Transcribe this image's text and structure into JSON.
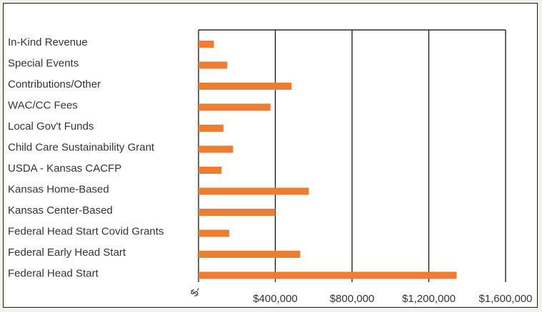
{
  "chart_data": {
    "type": "bar",
    "orientation": "horizontal",
    "title": "",
    "xlabel": "",
    "ylabel": "",
    "categories": [
      "In-Kind Revenue",
      "Special Events",
      "Contributions/Other",
      "WAC/CC Fees",
      "Local Gov't Funds",
      "Child Care Sustainability Grant",
      "USDA - Kansas CACFP",
      "Kansas Home-Based",
      "Kansas Center-Based",
      "Federal Head Start Covid Grants",
      "Federal Early Head Start",
      "Federal Head Start"
    ],
    "values": [
      80000,
      150000,
      485000,
      375000,
      130000,
      180000,
      120000,
      575000,
      400000,
      160000,
      530000,
      1345000
    ],
    "xlim": [
      0,
      1600000
    ],
    "xticks": [
      0,
      400000,
      800000,
      1200000,
      1600000
    ],
    "xtick_labels": [
      "$-",
      "$400,000",
      "$800,000",
      "$1,200,000",
      "$1,600,000"
    ],
    "gridlines": "vertical",
    "legend": "none",
    "bar_color": "#ed7d31"
  }
}
